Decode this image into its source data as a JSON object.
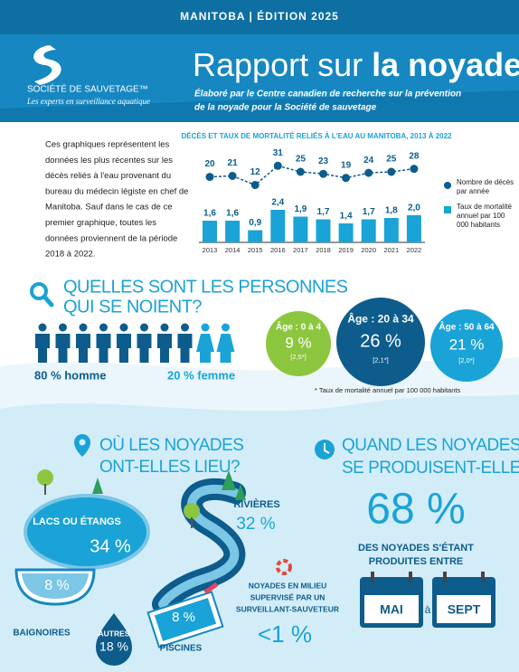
{
  "header": {
    "edition": "MANITOBA  | ÉDITION 2025",
    "logo_name": "SOCIÉTÉ DE SAUVETAGE™",
    "logo_tagline": "Les experts en surveillance aquatique",
    "title_start": "Rapport sur",
    "title_bold": "la noyade",
    "subtitle": [
      "Élaboré par le Centre canadien de recherche sur la prévention",
      "de la noyade pour la Société de sauvetage"
    ]
  },
  "intro": [
    "Ces graphiques représentent les",
    "données les plus récentes sur les",
    "décès reliés à l'eau provenant du",
    "bureau du médecin légiste en chef de",
    "Manitoba. Sauf dans le cas de ce",
    "premier graphique, toutes les",
    "données proviennent de la période",
    "2018 à 2022."
  ],
  "chart_data": {
    "type": "bar",
    "title": "DÉCÈS ET TAUX DE MORTALITÉ RELIÉS À L'EAU AU MANITOBA, 2013 À 2022",
    "categories": [
      "2013",
      "2014",
      "2015",
      "2016",
      "2017",
      "2018",
      "2019",
      "2020",
      "2021",
      "2022"
    ],
    "series": [
      {
        "name": "Nombre de décès par année",
        "type": "line",
        "color": "#0d5c8c",
        "values": [
          20,
          21,
          12,
          31,
          25,
          23,
          19,
          24,
          25,
          28
        ]
      },
      {
        "name": "Taux de mortalité annuel par 100 000 habitants",
        "type": "bar",
        "color": "#1aa3d6",
        "values": [
          1.6,
          1.6,
          0.9,
          2.4,
          1.9,
          1.7,
          1.4,
          1.7,
          1.8,
          2.0
        ],
        "value_labels": [
          "1,6",
          "1,6",
          "0,9",
          "2,4",
          "1,9",
          "1,7",
          "1,4",
          "1,7",
          "1,8",
          "2,0"
        ]
      }
    ],
    "legend": "right"
  },
  "who": {
    "heading": [
      "QUELLES SONT LES PERSONNES",
      "QUI SE NOIENT?"
    ],
    "men": "80 % homme",
    "women": "20 % femme",
    "ages": [
      {
        "label": "Âge : 0 à 4",
        "pct": "9 %",
        "rate": "[2,5*]"
      },
      {
        "label": "Âge : 20 à 34",
        "pct": "26 %",
        "rate": "[2,1*]"
      },
      {
        "label": "Âge : 50 à 64",
        "pct": "21 %",
        "rate": "[2,0*]"
      }
    ],
    "footnote": "* Taux de mortalité annuel par 100 000 habitants"
  },
  "where": {
    "heading": [
      "OÙ LES NOYADES",
      "ONT-ELLES LIEU?"
    ],
    "lakes": {
      "label": "LACS OU ÉTANGS",
      "pct": "34 %"
    },
    "rivers": {
      "label": "RIVIÈRES",
      "pct": "32 %"
    },
    "baths": {
      "label": "BAIGNOIRES",
      "pct": "8 %"
    },
    "other": {
      "label": "AUTRES",
      "pct": "18 %"
    },
    "pools": {
      "label": "PISCINES",
      "pct": "8 %"
    },
    "supervised": {
      "label": [
        "NOYADES EN MILIEU",
        "SUPERVISÉ PAR UN",
        "SURVEILLANT-SAUVETEUR"
      ],
      "pct": "<1 %"
    }
  },
  "when": {
    "heading": [
      "QUAND LES NOYADES",
      "SE PRODUISENT-ELLES?"
    ],
    "pct": "68 %",
    "text": [
      "DES NOYADES S'ÉTANT",
      "PRODUITES ENTRE"
    ],
    "from": "MAI",
    "joiner": "à",
    "to": "SEPT"
  }
}
